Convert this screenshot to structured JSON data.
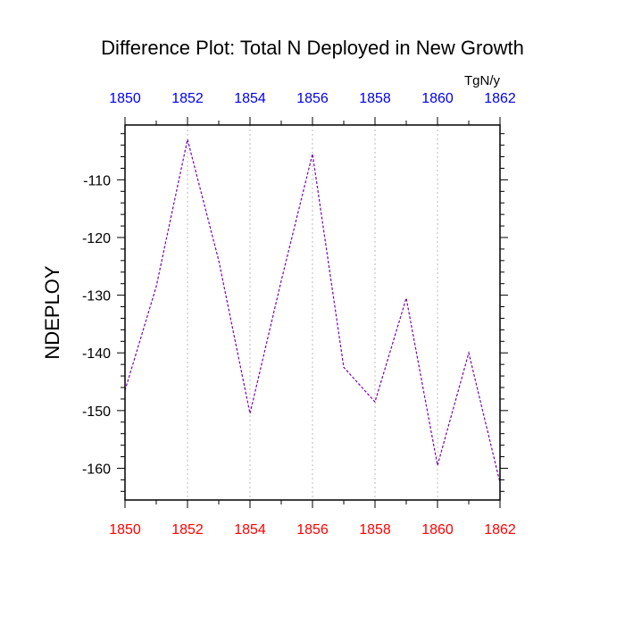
{
  "chart_data": {
    "type": "line",
    "title": "Difference Plot: Total N Deployed in New Growth",
    "units": "TgN/y",
    "ylabel": "NDEPLOY",
    "xlabel": "",
    "xlim": [
      1850,
      1862
    ],
    "ylim": [
      -165.5,
      -100.5
    ],
    "x_ticks": [
      1850,
      1852,
      1854,
      1856,
      1858,
      1860,
      1862
    ],
    "y_ticks": [
      -110,
      -120,
      -130,
      -140,
      -150,
      -160
    ],
    "y_tick_labels": [
      "-110",
      "-120",
      "-130",
      "-140",
      "-150",
      "-160"
    ],
    "x_tick_labels": [
      "1850",
      "1852",
      "1854",
      "1856",
      "1858",
      "1860",
      "1862"
    ],
    "grid": "vertical dotted at major x ticks",
    "colors": {
      "line": "#7a00b8",
      "bottom_tick_labels": "#ff0000",
      "top_tick_labels": "#0000ee",
      "grid": "#bbbbbb"
    },
    "series": [
      {
        "x": [
          1850,
          1851,
          1852,
          1853,
          1854,
          1855,
          1856,
          1857,
          1858,
          1859,
          1860,
          1861,
          1862
        ],
        "values": [
          -146.5,
          -128.5,
          -103.0,
          -124.0,
          -150.5,
          -127.5,
          -105.5,
          -142.5,
          -148.5,
          -130.5,
          -159.5,
          -140.0,
          -162.5
        ]
      }
    ]
  }
}
